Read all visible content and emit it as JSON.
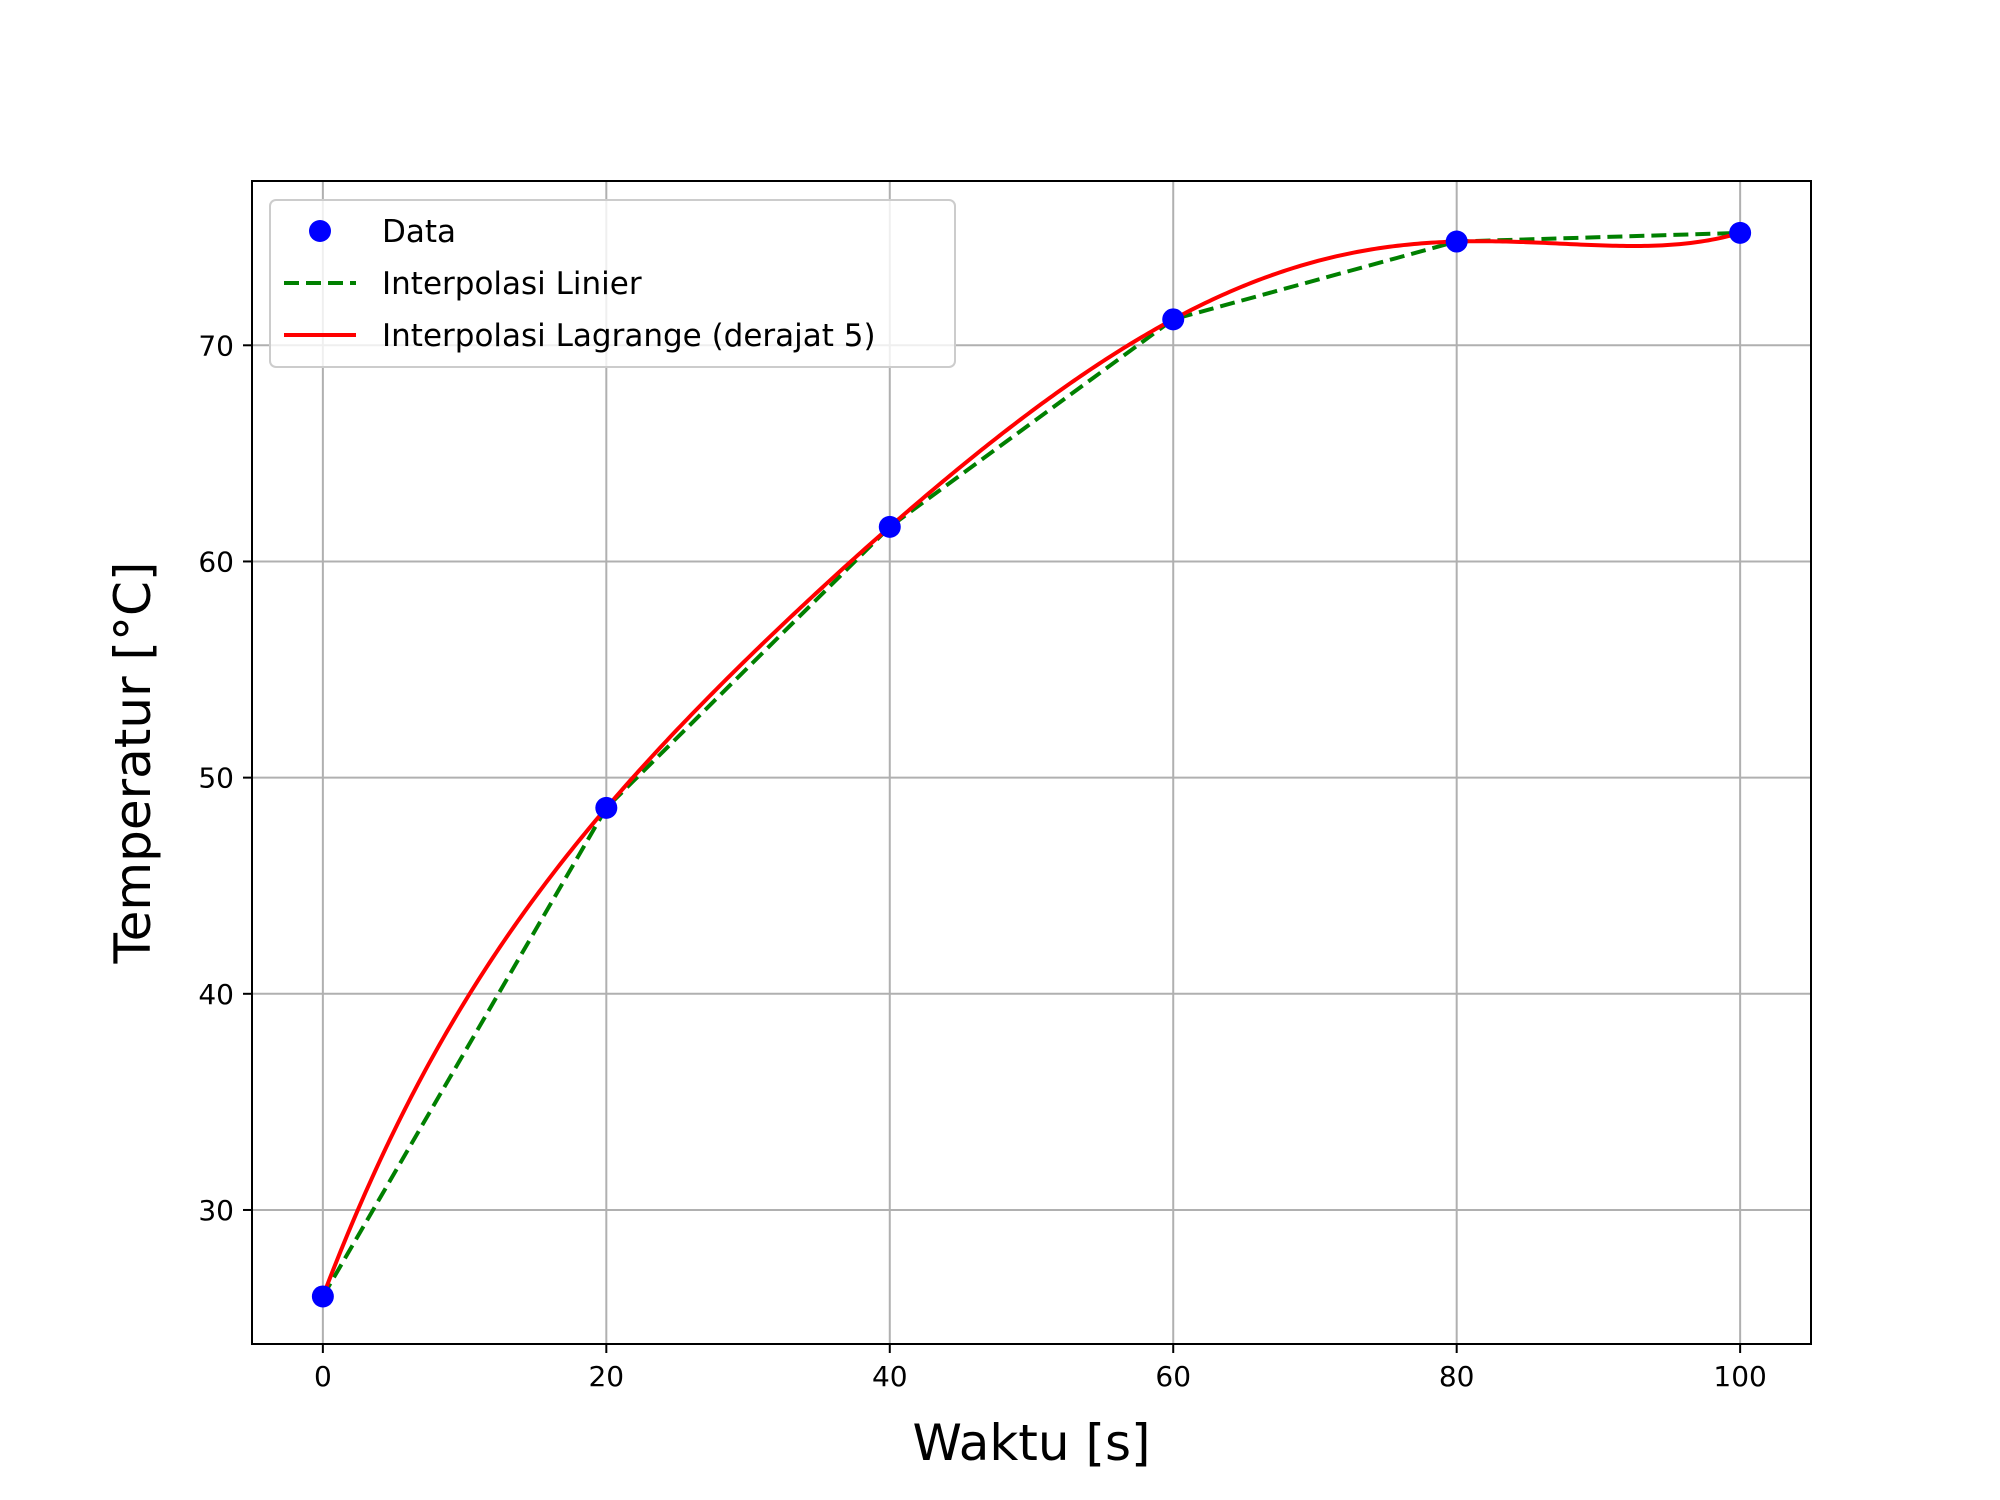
{
  "chart_data": {
    "type": "line",
    "title": "",
    "xlabel": "Waktu [s]",
    "ylabel": "Temperatur [°C]",
    "xlim": [
      -5,
      105
    ],
    "ylim": [
      23.8,
      77.6
    ],
    "xticks": [
      "0",
      "20",
      "40",
      "60",
      "80",
      "100"
    ],
    "yticks": [
      "30",
      "40",
      "50",
      "60",
      "70"
    ],
    "grid": true,
    "legend_position": "upper-left",
    "series": [
      {
        "name": "Data",
        "kind": "scatter",
        "color": "#0000ff",
        "x": [
          0,
          20,
          40,
          60,
          80,
          100
        ],
        "y": [
          26.0,
          48.6,
          61.6,
          71.2,
          74.8,
          75.2
        ]
      },
      {
        "name": "Interpolasi Linier",
        "kind": "line-dashed",
        "color": "#008000",
        "x": [
          0,
          20,
          40,
          60,
          80,
          100
        ],
        "y": [
          26.0,
          48.6,
          61.6,
          71.2,
          74.8,
          75.2
        ]
      },
      {
        "name": "Interpolasi Lagrange (derajat 5)",
        "kind": "line",
        "color": "#ff0000",
        "x": [
          0,
          20,
          40,
          60,
          80,
          100
        ],
        "y": [
          26.0,
          48.6,
          61.6,
          71.2,
          74.8,
          75.2
        ]
      }
    ]
  }
}
